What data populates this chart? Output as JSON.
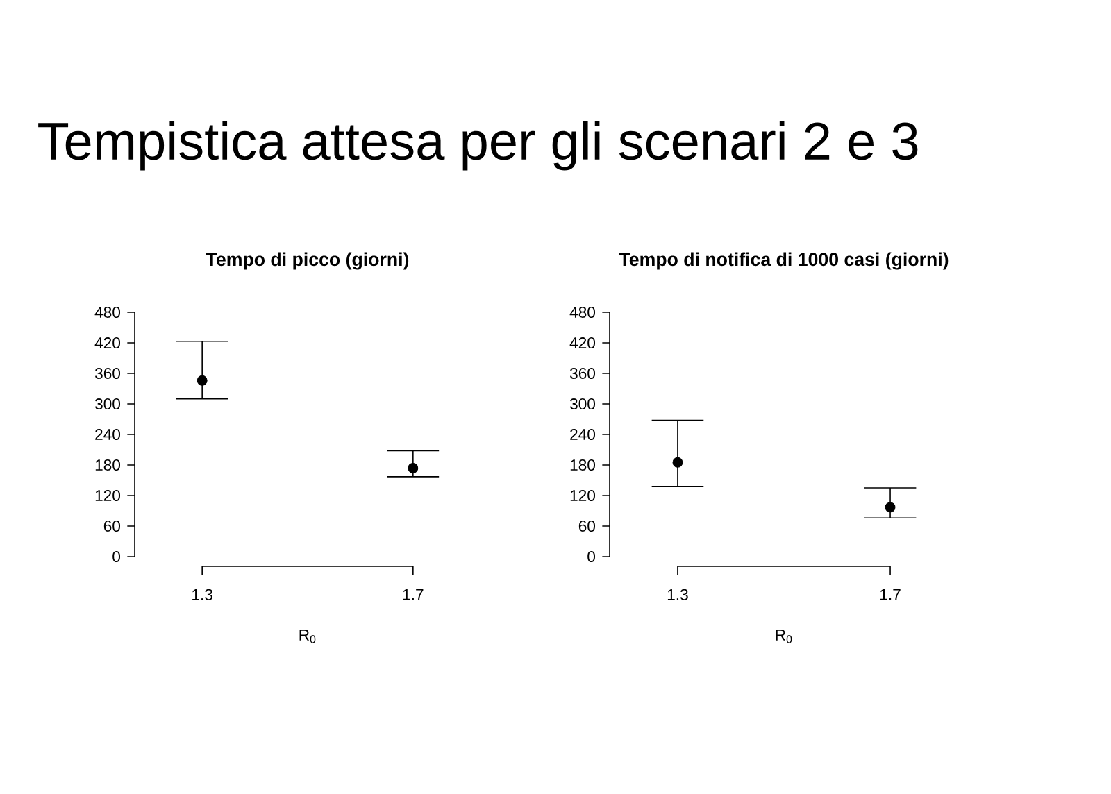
{
  "chart_data": [
    {
      "type": "scatter",
      "title": "Tempo di picco (giorni)",
      "xlabel": "R$_{0}$",
      "categories": [
        "1.3",
        "1.7"
      ],
      "values": [
        346,
        174
      ],
      "errors": [
        [
          310,
          423
        ],
        [
          157,
          208
        ]
      ],
      "color": "#000000",
      "marker": "circle",
      "ylim": [
        0,
        480
      ],
      "yticks": [
        0,
        60,
        120,
        180,
        240,
        300,
        360,
        420,
        480
      ],
      "grid": false,
      "annotations": [
        "Tempistica attesa per gli  scenari 2 e 3"
      ]
    },
    {
      "type": "scatter",
      "title": "Tempo di notifica di 1000 casi (giorni)",
      "xlabel": "R$_{0}$",
      "categories": [
        "1.3",
        "1.7"
      ],
      "values": [
        185,
        97
      ],
      "errors": [
        [
          138,
          268
        ],
        [
          76,
          135
        ]
      ],
      "color": "#000000",
      "marker": "circle",
      "ylim": [
        0,
        480
      ],
      "yticks": [
        0,
        60,
        120,
        180,
        240,
        300,
        360,
        420,
        480
      ],
      "grid": false
    }
  ]
}
